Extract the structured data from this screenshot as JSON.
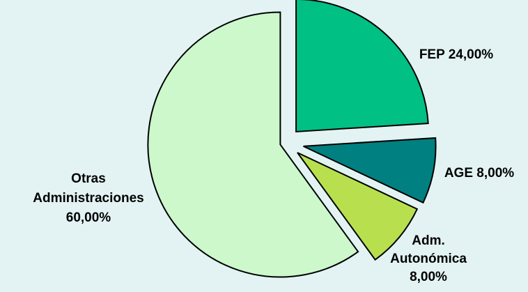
{
  "chart_data": {
    "type": "pie",
    "exploded": true,
    "slices": [
      {
        "label": "FEP 24,00%",
        "label_lines": [
          "FEP 24,00%"
        ],
        "category": "FEP",
        "value": 24.0,
        "color": "#00c083"
      },
      {
        "label": "AGE 8,00%",
        "label_lines": [
          "AGE 8,00%"
        ],
        "category": "AGE",
        "value": 8.0,
        "color": "#008080"
      },
      {
        "label": "Adm. Autonómica 8,00%",
        "label_lines": [
          "Adm.",
          "Autonómica",
          "8,00%"
        ],
        "category": "Adm. Autonómica",
        "value": 8.0,
        "color": "#b8e04e"
      },
      {
        "label": "Otras Administraciones 60,00%",
        "label_lines": [
          "Otras",
          "Administraciones",
          "60,00%"
        ],
        "category": "Otras Administraciones",
        "value": 60.0,
        "color": "#ccf8cc"
      }
    ]
  }
}
